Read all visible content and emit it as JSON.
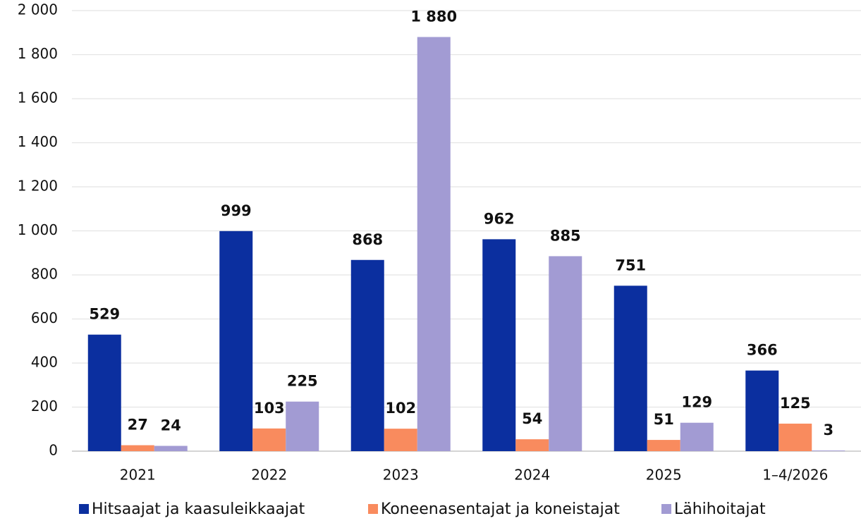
{
  "chart_data": {
    "type": "bar",
    "categories": [
      "2021",
      "2022",
      "2023",
      "2024",
      "2025",
      "1–4/2026"
    ],
    "series": [
      {
        "name": "Hitsaajat ja kaasuleikkaajat",
        "color": "#0b2f9f",
        "values": [
          529,
          999,
          868,
          962,
          751,
          366
        ]
      },
      {
        "name": "Koneenasentajat ja koneistajat",
        "color": "#f98b5e",
        "values": [
          27,
          103,
          102,
          54,
          51,
          125
        ]
      },
      {
        "name": "Lähihoitajat",
        "color": "#a29bd3",
        "values": [
          24,
          225,
          1880,
          885,
          129,
          3
        ],
        "value_labels": [
          "24",
          "225",
          "1 880",
          "885",
          "129",
          "3"
        ]
      }
    ],
    "ylim": [
      0,
      2000
    ],
    "yticks": [
      0,
      200,
      400,
      600,
      800,
      {
        "value": 1000,
        "label": "1 000"
      },
      {
        "value": 1200,
        "label": "1 200"
      },
      {
        "value": 1400,
        "label": "1 400"
      },
      {
        "value": 1600,
        "label": "1 600"
      },
      {
        "value": 1800,
        "label": "1 800"
      },
      {
        "value": 2000,
        "label": "2 000"
      }
    ],
    "grid": true,
    "legend": "bottom"
  }
}
